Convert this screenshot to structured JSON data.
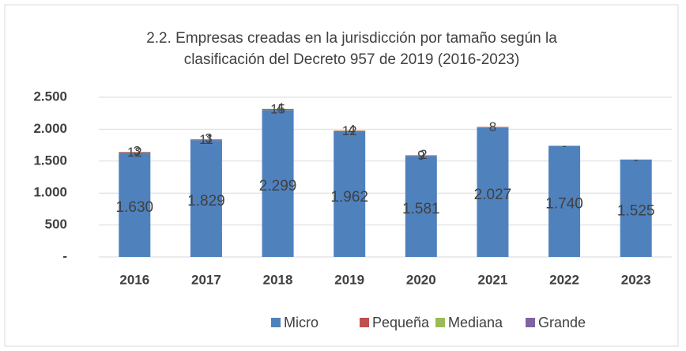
{
  "chart_data": {
    "type": "stacked_bar",
    "title": [
      "2.2.  Empresas creadas en la jurisdicción por tamaño según la",
      "clasificación del Decreto 957 de 2019 (2016-2023)"
    ],
    "categories": [
      "2016",
      "2017",
      "2018",
      "2019",
      "2020",
      "2021",
      "2022",
      "2023"
    ],
    "series": [
      {
        "name": "Micro",
        "color": "#4f81bd",
        "values": [
          1630,
          1829,
          2299,
          1962,
          1581,
          2027,
          1740,
          1525
        ],
        "value_labels": [
          "1.630",
          "1.829",
          "2.299",
          "1.962",
          "1.581",
          "2.027",
          "1.740",
          "1.525"
        ]
      },
      {
        "name": "Pequeña",
        "color": "#c0504d",
        "values": [
          12,
          11,
          15,
          12,
          9,
          8,
          0,
          0
        ],
        "value_labels": [
          "12",
          "11",
          "15",
          "12",
          "9",
          "8",
          "-",
          "-"
        ]
      },
      {
        "name": "Mediana",
        "color": "#9bbb59",
        "values": [
          3,
          3,
          4,
          4,
          2,
          0,
          0,
          0
        ],
        "value_labels": [
          "3",
          "3",
          "4",
          "4",
          "2",
          null,
          null,
          null
        ]
      },
      {
        "name": "Grande",
        "color": "#8064a2",
        "values": [
          0,
          0,
          0,
          0,
          0,
          0,
          0,
          0
        ]
      }
    ],
    "ylim": [
      0,
      2500
    ],
    "yticks": [
      {
        "value": 0,
        "label": "-"
      },
      500,
      {
        "value": 1000,
        "label": "1.000"
      },
      {
        "value": 1500,
        "label": "1.500"
      },
      {
        "value": 2000,
        "label": "2.000"
      },
      {
        "value": 2500,
        "label": "2.500"
      }
    ],
    "grid": true,
    "legend": "bottom"
  }
}
